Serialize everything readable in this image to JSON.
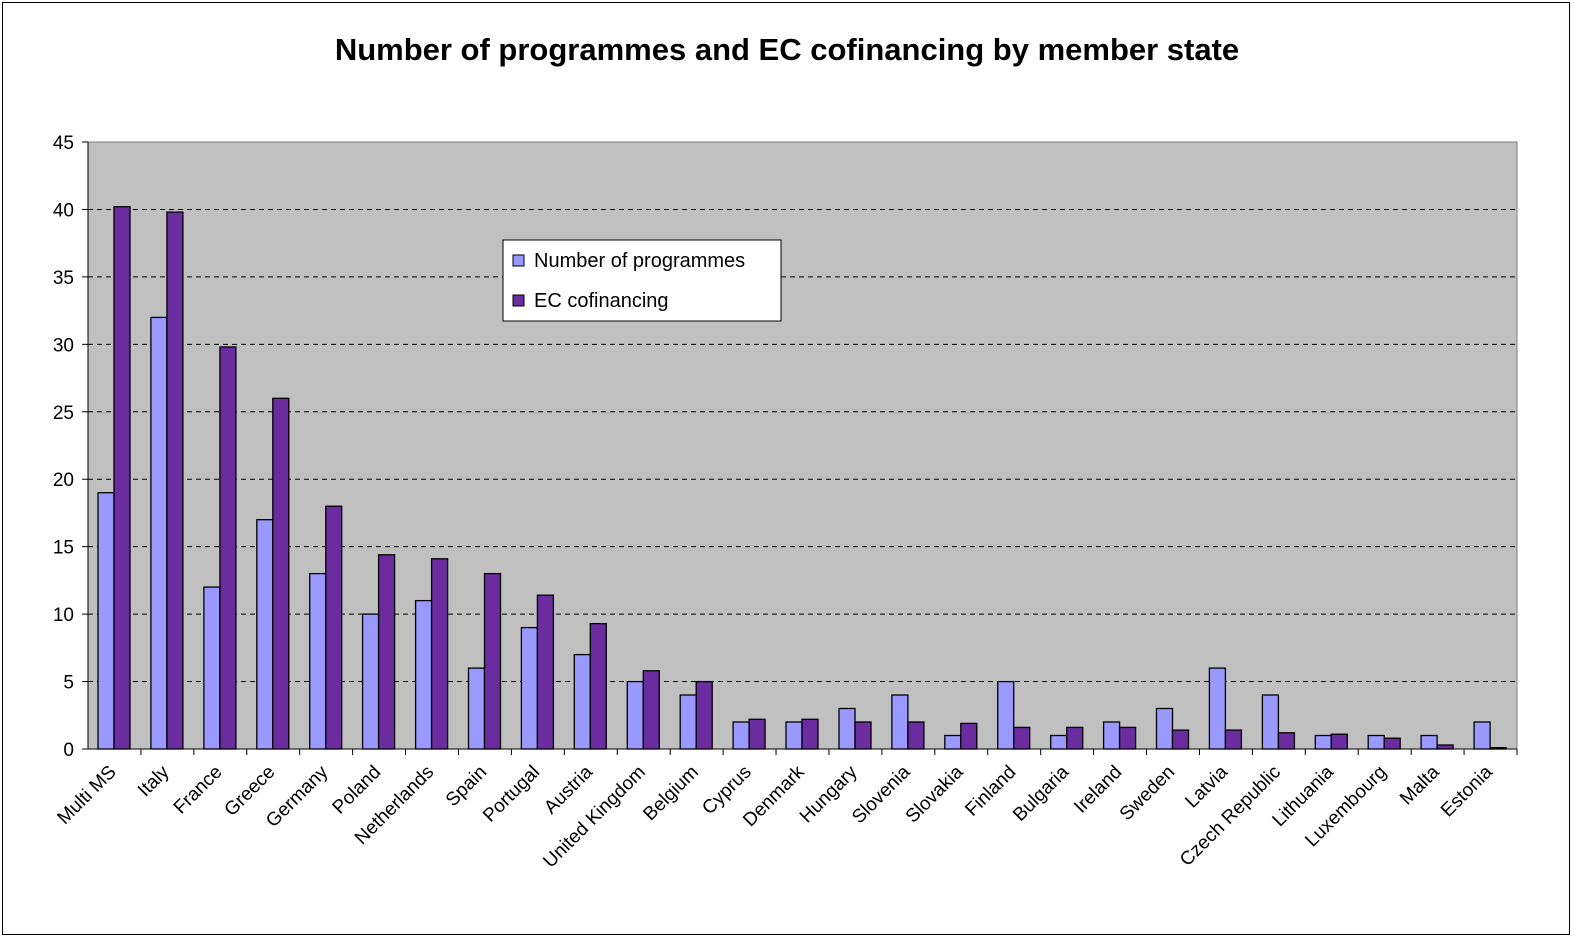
{
  "chart_data": {
    "type": "bar",
    "title": "Number of programmes and EC cofinancing by member state",
    "xlabel": "",
    "ylabel": "",
    "ylim": [
      0,
      45
    ],
    "yticks": [
      0,
      5,
      10,
      15,
      20,
      25,
      30,
      35,
      40,
      45
    ],
    "grid": "horizontal dashed",
    "legend_position": "top-center",
    "plot_background": "#C0C0C0",
    "categories": [
      "Multi MS",
      "Italy",
      "France",
      "Greece",
      "Germany",
      "Poland",
      "Netherlands",
      "Spain",
      "Portugal",
      "Austria",
      "United Kingdom",
      "Belgium",
      "Cyprus",
      "Denmark",
      "Hungary",
      "Slovenia",
      "Slovakia",
      "Finland",
      "Bulgaria",
      "Ireland",
      "Sweden",
      "Latvia",
      "Czech Republic",
      "Lithuania",
      "Luxembourg",
      "Malta",
      "Estonia"
    ],
    "series": [
      {
        "name": "Number of programmes",
        "color": "#9999FF",
        "values": [
          19,
          32,
          12,
          17,
          13,
          10,
          11,
          6,
          9,
          7,
          5,
          4,
          2,
          2,
          3,
          4,
          1,
          5,
          1,
          2,
          3,
          6,
          4,
          1,
          1,
          1,
          2
        ]
      },
      {
        "name": "EC cofinancing",
        "color": "#6A2C9E",
        "values": [
          40.2,
          39.8,
          29.8,
          26.0,
          18.0,
          14.4,
          14.1,
          13.0,
          11.4,
          9.3,
          5.8,
          5.0,
          2.2,
          2.2,
          2.0,
          2.0,
          1.9,
          1.6,
          1.6,
          1.6,
          1.4,
          1.4,
          1.2,
          1.1,
          0.8,
          0.3,
          0.1
        ]
      }
    ]
  }
}
